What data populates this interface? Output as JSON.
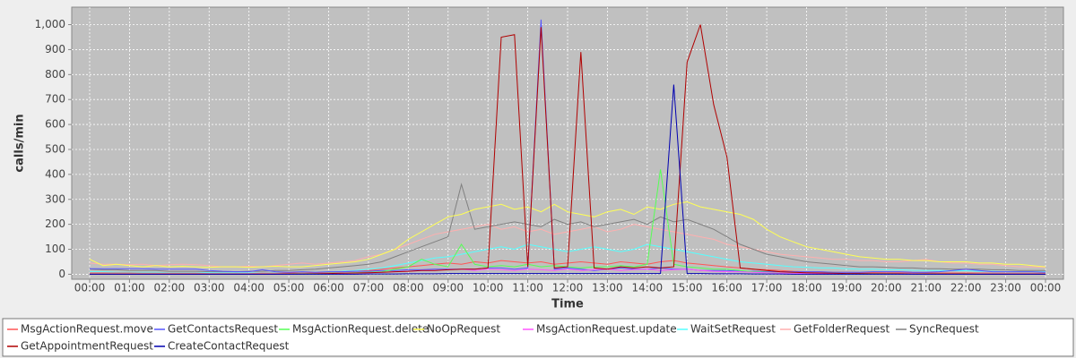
{
  "chart_data": {
    "type": "line",
    "y_label": "calls/min",
    "x_label": "Time",
    "xlim": [
      -27,
      1467
    ],
    "ylim": [
      -20,
      1070
    ],
    "grid": true,
    "xticks": [
      {
        "value": 0,
        "label": "00:00"
      },
      {
        "value": 60,
        "label": "01:00"
      },
      {
        "value": 120,
        "label": "02:00"
      },
      {
        "value": 180,
        "label": "03:00"
      },
      {
        "value": 240,
        "label": "04:00"
      },
      {
        "value": 300,
        "label": "05:00"
      },
      {
        "value": 360,
        "label": "06:00"
      },
      {
        "value": 420,
        "label": "07:00"
      },
      {
        "value": 480,
        "label": "08:00"
      },
      {
        "value": 540,
        "label": "09:00"
      },
      {
        "value": 600,
        "label": "10:00"
      },
      {
        "value": 660,
        "label": "11:00"
      },
      {
        "value": 720,
        "label": "12:00"
      },
      {
        "value": 780,
        "label": "13:00"
      },
      {
        "value": 840,
        "label": "14:00"
      },
      {
        "value": 900,
        "label": "15:00"
      },
      {
        "value": 960,
        "label": "16:00"
      },
      {
        "value": 1020,
        "label": "17:00"
      },
      {
        "value": 1080,
        "label": "18:00"
      },
      {
        "value": 1140,
        "label": "19:00"
      },
      {
        "value": 1200,
        "label": "20:00"
      },
      {
        "value": 1260,
        "label": "21:00"
      },
      {
        "value": 1320,
        "label": "22:00"
      },
      {
        "value": 1380,
        "label": "23:00"
      },
      {
        "value": 1440,
        "label": "00:00"
      }
    ],
    "yticks": [
      0,
      100,
      200,
      300,
      400,
      500,
      600,
      700,
      800,
      900,
      {
        "value": 1000,
        "label": "1,000"
      }
    ],
    "x": [
      0,
      20,
      40,
      60,
      80,
      100,
      120,
      140,
      160,
      180,
      200,
      220,
      240,
      260,
      280,
      300,
      320,
      340,
      360,
      380,
      400,
      420,
      440,
      460,
      480,
      500,
      520,
      540,
      560,
      580,
      600,
      620,
      640,
      660,
      680,
      700,
      720,
      740,
      760,
      780,
      800,
      820,
      840,
      860,
      880,
      900,
      920,
      940,
      960,
      980,
      1000,
      1020,
      1040,
      1060,
      1080,
      1100,
      1120,
      1140,
      1160,
      1180,
      1200,
      1220,
      1240,
      1260,
      1280,
      1300,
      1320,
      1340,
      1360,
      1380,
      1400,
      1420,
      1440
    ],
    "series": [
      {
        "name": "GetFolderRequest",
        "color": "#ffafaf",
        "values": [
          45,
          40,
          40,
          38,
          40,
          35,
          38,
          40,
          38,
          35,
          30,
          30,
          32,
          30,
          35,
          40,
          45,
          40,
          45,
          50,
          55,
          70,
          80,
          100,
          120,
          140,
          160,
          170,
          180,
          190,
          200,
          180,
          190,
          170,
          180,
          160,
          170,
          180,
          190,
          170,
          180,
          200,
          190,
          180,
          170,
          160,
          150,
          140,
          120,
          110,
          100,
          90,
          80,
          75,
          70,
          65,
          60,
          60,
          55,
          55,
          50,
          50,
          55,
          60,
          50,
          45,
          45,
          40,
          40,
          35,
          30,
          30,
          28
        ]
      },
      {
        "name": "SyncRequest",
        "color": "#808080",
        "values": [
          20,
          18,
          18,
          15,
          15,
          15,
          12,
          12,
          12,
          10,
          10,
          10,
          12,
          12,
          15,
          15,
          18,
          20,
          25,
          30,
          35,
          40,
          50,
          70,
          90,
          110,
          130,
          150,
          360,
          180,
          190,
          200,
          210,
          200,
          190,
          220,
          200,
          210,
          190,
          200,
          210,
          220,
          200,
          230,
          210,
          220,
          200,
          180,
          150,
          120,
          100,
          80,
          70,
          60,
          50,
          45,
          40,
          35,
          30,
          30,
          28,
          25,
          25,
          22,
          22,
          20,
          20,
          20,
          18,
          18,
          15,
          15,
          15
        ]
      },
      {
        "name": "NoOpRequest",
        "color": "#ffff55",
        "values": [
          60,
          35,
          40,
          35,
          30,
          35,
          30,
          32,
          30,
          28,
          30,
          30,
          28,
          30,
          32,
          30,
          30,
          35,
          40,
          45,
          50,
          60,
          80,
          100,
          140,
          170,
          200,
          230,
          240,
          260,
          270,
          280,
          260,
          270,
          250,
          280,
          250,
          240,
          230,
          250,
          260,
          240,
          270,
          260,
          280,
          290,
          270,
          260,
          250,
          240,
          220,
          180,
          150,
          130,
          110,
          100,
          90,
          80,
          70,
          65,
          60,
          60,
          55,
          55,
          50,
          50,
          50,
          45,
          45,
          40,
          40,
          35,
          30
        ]
      },
      {
        "name": "WaitSetRequest",
        "color": "#55ffff",
        "values": [
          10,
          10,
          8,
          8,
          8,
          8,
          6,
          6,
          6,
          6,
          5,
          5,
          5,
          5,
          6,
          6,
          8,
          8,
          10,
          12,
          15,
          20,
          25,
          35,
          45,
          55,
          65,
          70,
          80,
          90,
          100,
          110,
          100,
          120,
          110,
          100,
          90,
          100,
          110,
          100,
          90,
          100,
          120,
          110,
          100,
          90,
          80,
          70,
          60,
          50,
          45,
          40,
          35,
          30,
          28,
          25,
          25,
          22,
          20,
          20,
          18,
          18,
          16,
          15,
          15,
          14,
          14,
          12,
          12,
          10,
          10,
          10,
          10
        ]
      },
      {
        "name": "MsgActionRequest.move",
        "color": "#ff5555",
        "values": [
          5,
          5,
          5,
          5,
          4,
          4,
          4,
          4,
          4,
          3,
          3,
          3,
          3,
          4,
          4,
          5,
          5,
          6,
          8,
          10,
          12,
          15,
          20,
          25,
          30,
          35,
          40,
          45,
          40,
          50,
          45,
          55,
          50,
          45,
          50,
          40,
          45,
          50,
          45,
          40,
          50,
          45,
          40,
          50,
          55,
          45,
          40,
          35,
          30,
          25,
          20,
          18,
          15,
          12,
          10,
          10,
          8,
          8,
          7,
          7,
          6,
          6,
          6,
          5,
          5,
          5,
          5,
          5,
          4,
          4,
          4,
          4,
          4
        ]
      },
      {
        "name": "GetContactsRequest",
        "color": "#5555ff",
        "values": [
          22,
          22,
          22,
          22,
          22,
          20,
          20,
          20,
          20,
          15,
          12,
          10,
          10,
          18,
          10,
          8,
          10,
          8,
          10,
          10,
          12,
          12,
          15,
          15,
          18,
          18,
          20,
          20,
          20,
          20,
          25,
          25,
          20,
          25,
          1020,
          20,
          25,
          20,
          15,
          20,
          25,
          20,
          20,
          25,
          20,
          20,
          15,
          15,
          15,
          12,
          12,
          10,
          10,
          10,
          10,
          10,
          8,
          8,
          8,
          10,
          10,
          10,
          8,
          8,
          10,
          15,
          20,
          15,
          10,
          10,
          10,
          10,
          8
        ]
      },
      {
        "name": "MsgActionRequest.delete",
        "color": "#55ff55",
        "values": [
          2,
          2,
          2,
          2,
          2,
          2,
          2,
          2,
          2,
          2,
          2,
          2,
          2,
          2,
          2,
          2,
          3,
          3,
          4,
          5,
          6,
          8,
          10,
          20,
          30,
          60,
          40,
          30,
          120,
          40,
          30,
          35,
          30,
          40,
          30,
          35,
          30,
          25,
          30,
          30,
          35,
          30,
          40,
          420,
          40,
          30,
          25,
          20,
          20,
          15,
          10,
          8,
          6,
          5,
          5,
          4,
          4,
          3,
          3,
          3,
          3,
          2,
          2,
          2,
          2,
          2,
          2,
          2,
          2,
          2,
          2,
          2,
          2
        ]
      },
      {
        "name": "MsgActionRequest.update",
        "color": "#ff55ff",
        "values": [
          1,
          1,
          1,
          1,
          1,
          1,
          1,
          1,
          1,
          1,
          1,
          1,
          1,
          1,
          1,
          1,
          2,
          2,
          3,
          4,
          5,
          6,
          8,
          10,
          12,
          15,
          15,
          18,
          20,
          15,
          20,
          18,
          15,
          20,
          18,
          15,
          20,
          15,
          18,
          20,
          15,
          18,
          20,
          15,
          18,
          20,
          15,
          12,
          10,
          10,
          8,
          6,
          5,
          4,
          3,
          3,
          2,
          2,
          2,
          2,
          2,
          2,
          2,
          1,
          1,
          1,
          1,
          1,
          1,
          1,
          1,
          1,
          1
        ]
      },
      {
        "name": "GetAppointmentRequest",
        "color": "#b00000",
        "values": [
          0,
          0,
          0,
          0,
          0,
          0,
          0,
          0,
          0,
          0,
          0,
          0,
          0,
          0,
          0,
          1,
          1,
          2,
          3,
          4,
          5,
          6,
          8,
          10,
          12,
          15,
          15,
          18,
          20,
          20,
          25,
          950,
          960,
          30,
          990,
          25,
          30,
          890,
          25,
          20,
          30,
          25,
          30,
          25,
          30,
          850,
          1000,
          680,
          470,
          25,
          20,
          15,
          10,
          8,
          6,
          5,
          4,
          3,
          3,
          2,
          2,
          2,
          1,
          1,
          1,
          1,
          1,
          0,
          0,
          0,
          0,
          0,
          0
        ]
      },
      {
        "name": "CreateContactRequest",
        "color": "#0000b0",
        "values": [
          0,
          0,
          0,
          0,
          0,
          0,
          0,
          0,
          0,
          0,
          0,
          0,
          0,
          0,
          0,
          0,
          0,
          0,
          0,
          0,
          0,
          1,
          1,
          1,
          2,
          2,
          2,
          3,
          3,
          3,
          3,
          3,
          3,
          3,
          3,
          3,
          3,
          3,
          3,
          3,
          3,
          3,
          3,
          3,
          760,
          3,
          3,
          2,
          2,
          2,
          1,
          1,
          1,
          0,
          0,
          0,
          0,
          0,
          0,
          0,
          0,
          0,
          0,
          0,
          0,
          0,
          0,
          0,
          0,
          0,
          0,
          0,
          0
        ]
      }
    ],
    "legend_order": [
      4,
      5,
      6,
      2,
      7,
      3,
      0,
      1,
      8,
      9
    ]
  }
}
